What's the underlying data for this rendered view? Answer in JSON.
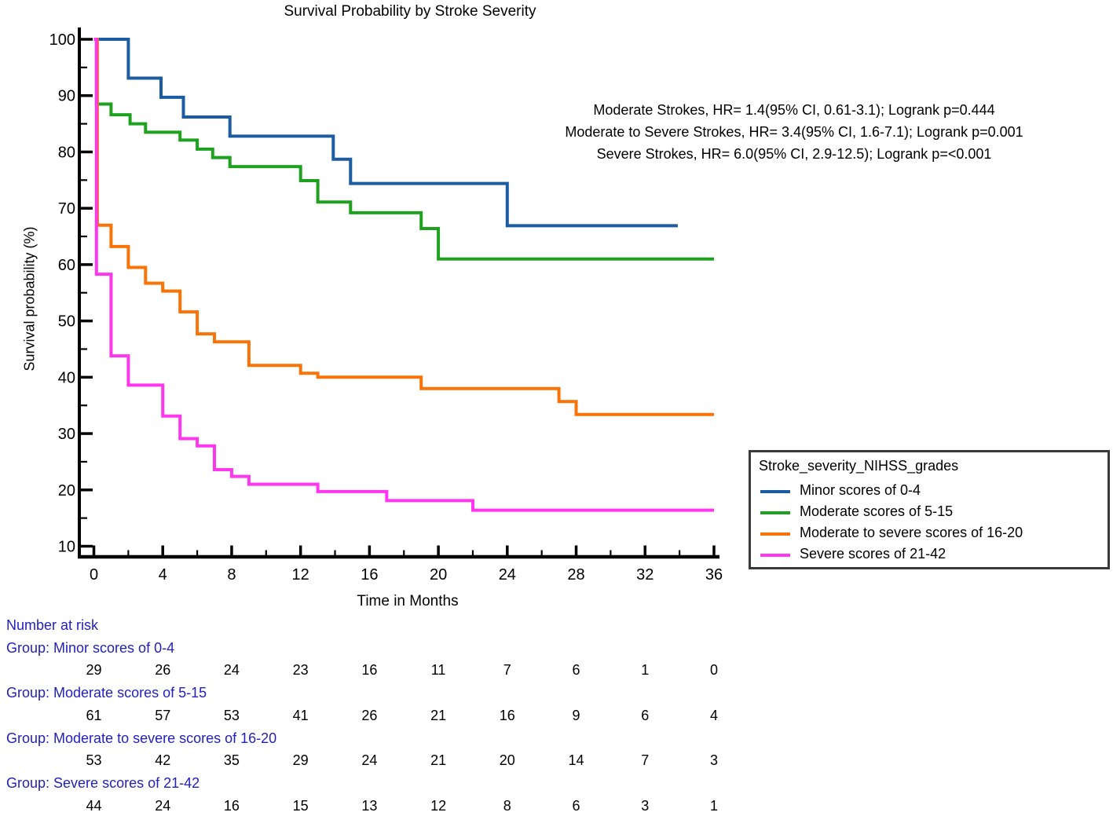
{
  "title": "Survival Probability by Stroke Severity",
  "axes": {
    "x_label": "Time in Months",
    "y_label": "Survival probability (%)"
  },
  "chart_data": {
    "type": "line",
    "subtype": "kaplan-meier-step",
    "title": "Survival Probability by Stroke Severity",
    "xlabel": "Time in Months",
    "ylabel": "Survival probability (%)",
    "xlim": [
      0,
      36
    ],
    "ylim": [
      10,
      100
    ],
    "grid": false,
    "x_ticks": [
      0,
      4,
      8,
      12,
      16,
      20,
      24,
      28,
      32,
      36
    ],
    "x_minor_ticks": [
      2,
      6,
      10,
      14,
      18,
      22,
      26,
      30,
      34
    ],
    "y_ticks": [
      10,
      20,
      30,
      40,
      50,
      60,
      70,
      80,
      90,
      100
    ],
    "y_minor_ticks": [
      15,
      25,
      35,
      45,
      55,
      65,
      75,
      85,
      95
    ],
    "legend_title": "Stroke_severity_NIHSS_grades",
    "legend_position": "outside-right-bottom",
    "annotations": [
      "Moderate Strokes, HR= 1.4(95% CI, 0.61-3.1); Logrank p=0.444",
      "Moderate to Severe Strokes, HR= 3.4(95% CI, 1.6-7.1); Logrank p=0.001",
      "Severe Strokes, HR= 6.0(95% CI, 2.9-12.5); Logrank p=<0.001"
    ],
    "series": [
      {
        "name": "Minor scores of 0-4",
        "color": "#1b5ca3",
        "end": 33.9,
        "points": [
          [
            0,
            100
          ],
          [
            2,
            93.1
          ],
          [
            3.9,
            89.7
          ],
          [
            5.2,
            86.2
          ],
          [
            7.9,
            82.8
          ],
          [
            13.9,
            78.7
          ],
          [
            14.9,
            74.4
          ],
          [
            24,
            66.9
          ]
        ]
      },
      {
        "name": "Moderate scores of 5-15",
        "color": "#1ea11e",
        "end": 36,
        "points": [
          [
            0,
            100
          ],
          [
            0.15,
            88.5
          ],
          [
            1,
            86.6
          ],
          [
            2.1,
            85.0
          ],
          [
            3,
            83.5
          ],
          [
            5,
            82.1
          ],
          [
            6,
            80.5
          ],
          [
            6.9,
            79.0
          ],
          [
            7.9,
            77.4
          ],
          [
            12,
            74.9
          ],
          [
            13,
            71.1
          ],
          [
            14.9,
            69.2
          ],
          [
            19,
            66.4
          ],
          [
            20,
            61.0
          ]
        ]
      },
      {
        "name": "Moderate to severe scores of 16-20",
        "color": "#fa7307",
        "end": 36,
        "points": [
          [
            0,
            100
          ],
          [
            0.2,
            67.0
          ],
          [
            1,
            63.2
          ],
          [
            2,
            59.5
          ],
          [
            3,
            56.7
          ],
          [
            4,
            55.3
          ],
          [
            5,
            51.6
          ],
          [
            6,
            47.7
          ],
          [
            7,
            46.3
          ],
          [
            9,
            42.1
          ],
          [
            12,
            40.7
          ],
          [
            13,
            40.0
          ],
          [
            19,
            38.0
          ],
          [
            27,
            35.7
          ],
          [
            28,
            33.4
          ]
        ]
      },
      {
        "name": "Severe scores of 21-42",
        "color": "#ff35f0",
        "end": 36,
        "points": [
          [
            0,
            100
          ],
          [
            0.15,
            58.3
          ],
          [
            1,
            43.8
          ],
          [
            2,
            38.6
          ],
          [
            4,
            33.1
          ],
          [
            5,
            29.1
          ],
          [
            6,
            27.8
          ],
          [
            7,
            23.6
          ],
          [
            8,
            22.4
          ],
          [
            9,
            21.0
          ],
          [
            13,
            19.7
          ],
          [
            17,
            18.1
          ],
          [
            22,
            16.4
          ]
        ]
      }
    ]
  },
  "risk_table": {
    "heading": "Number at risk",
    "times": [
      0,
      4,
      8,
      12,
      16,
      20,
      24,
      28,
      32,
      36
    ],
    "groups": [
      {
        "label": "Group: Minor scores of 0-4",
        "counts": [
          29,
          26,
          24,
          23,
          16,
          11,
          7,
          6,
          1,
          0
        ]
      },
      {
        "label": "Group: Moderate scores of 5-15",
        "counts": [
          61,
          57,
          53,
          41,
          26,
          21,
          16,
          9,
          6,
          4
        ]
      },
      {
        "label": "Group: Moderate to severe scores of 16-20",
        "counts": [
          53,
          42,
          35,
          29,
          24,
          21,
          20,
          14,
          7,
          3
        ]
      },
      {
        "label": "Group: Severe scores of 21-42",
        "counts": [
          44,
          24,
          16,
          15,
          13,
          12,
          8,
          6,
          3,
          1
        ]
      }
    ]
  },
  "colors": {
    "axis": "#000000",
    "risk_text": "#2222bb",
    "legend_border": "#3a3a3a"
  }
}
